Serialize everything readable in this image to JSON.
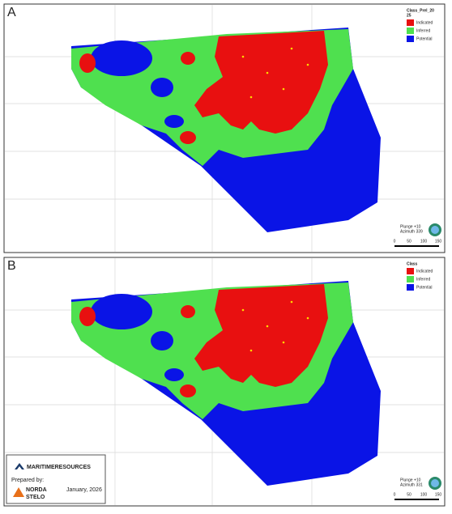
{
  "panels": [
    {
      "label": "A",
      "legend": {
        "title": [
          "Class_Prel_20",
          "25"
        ],
        "items": [
          "Indicated",
          "Inferred",
          "Potential"
        ]
      },
      "view": [
        "Plunge +10",
        "Azimuth 339"
      ],
      "scale": [
        0,
        50,
        100,
        150
      ]
    },
    {
      "label": "B",
      "legend": {
        "title": [
          "Class"
        ],
        "items": [
          "Indicated",
          "Inferred",
          "Potential"
        ]
      },
      "view": [
        "Plunge +10",
        "Azimuth 331"
      ],
      "scale": [
        0,
        50,
        100,
        150
      ]
    }
  ],
  "footer": {
    "company": "MARITIMERESOURCES",
    "prepared": "Prepared by:",
    "firm": [
      "NORDA",
      "STELO"
    ],
    "date": "January, 2026"
  }
}
